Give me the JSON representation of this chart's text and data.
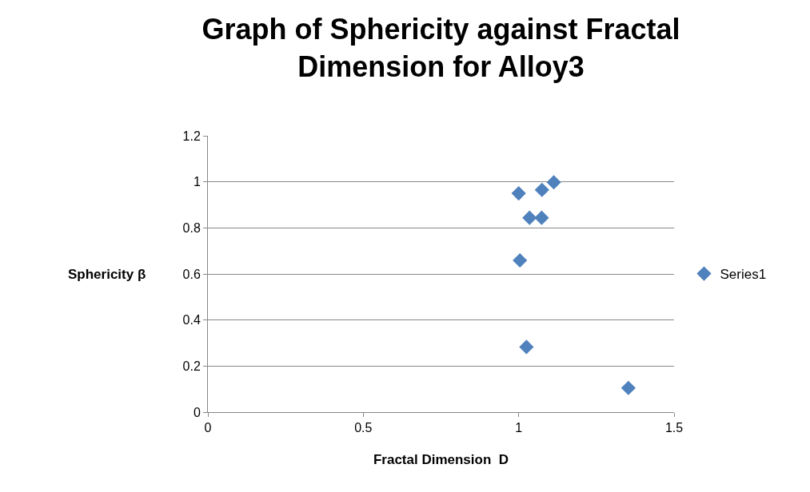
{
  "chart_data": {
    "type": "scatter",
    "title": "Graph of Sphericity against Fractal Dimension for Alloy3",
    "xlabel": "Fractal Dimension  D",
    "ylabel": "Sphericity β",
    "series": [
      {
        "name": "Series1",
        "color": "#4f81bd",
        "x": [
          1.0,
          1.075,
          1.113,
          1.035,
          1.074,
          1.004,
          1.025,
          1.353
        ],
        "values": [
          0.95,
          0.965,
          0.998,
          0.844,
          0.844,
          0.659,
          0.283,
          0.105
        ]
      }
    ],
    "xlim": [
      0,
      1.5
    ],
    "xticks": [
      0,
      0.5,
      1,
      1.5
    ],
    "ylim": [
      0,
      1.2
    ],
    "yticks": [
      0,
      0.2,
      0.4,
      0.6,
      0.8,
      1,
      1.2
    ],
    "grid": "y",
    "legend": "right",
    "marker": "diamond"
  }
}
